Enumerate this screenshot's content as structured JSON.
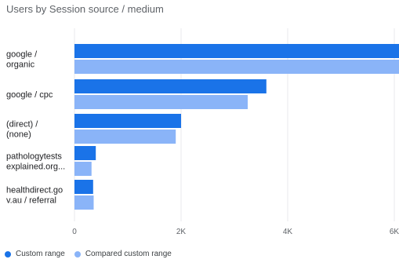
{
  "colors": {
    "current": "#1a73e8",
    "compared": "#8ab4f8",
    "grid": "#e8eaed",
    "text": "#202124"
  },
  "title": "Users by Session source / medium",
  "legend": {
    "current_label": "Custom range",
    "compared_label": "Compared custom range"
  },
  "chart_data": {
    "type": "bar",
    "orientation": "horizontal",
    "title": "Users by Session source / medium",
    "categories": [
      [
        "google /",
        "organic"
      ],
      [
        "google / cpc"
      ],
      [
        "(direct) /",
        "(none)"
      ],
      [
        "pathologytests",
        "explained.org..."
      ],
      [
        "healthdirect.go",
        "v.au / referral"
      ]
    ],
    "series": [
      {
        "name": "Custom range",
        "values": [
          6200,
          3600,
          2000,
          400,
          350
        ]
      },
      {
        "name": "Compared custom range",
        "values": [
          6200,
          3250,
          1900,
          320,
          360
        ]
      }
    ],
    "xlim": [
      0,
      6000
    ],
    "xticks": [
      0,
      2000,
      4000,
      6000
    ],
    "xtick_labels": [
      "0",
      "2K",
      "4K",
      "6K"
    ],
    "grid": true,
    "legend_position": "bottom-left"
  }
}
